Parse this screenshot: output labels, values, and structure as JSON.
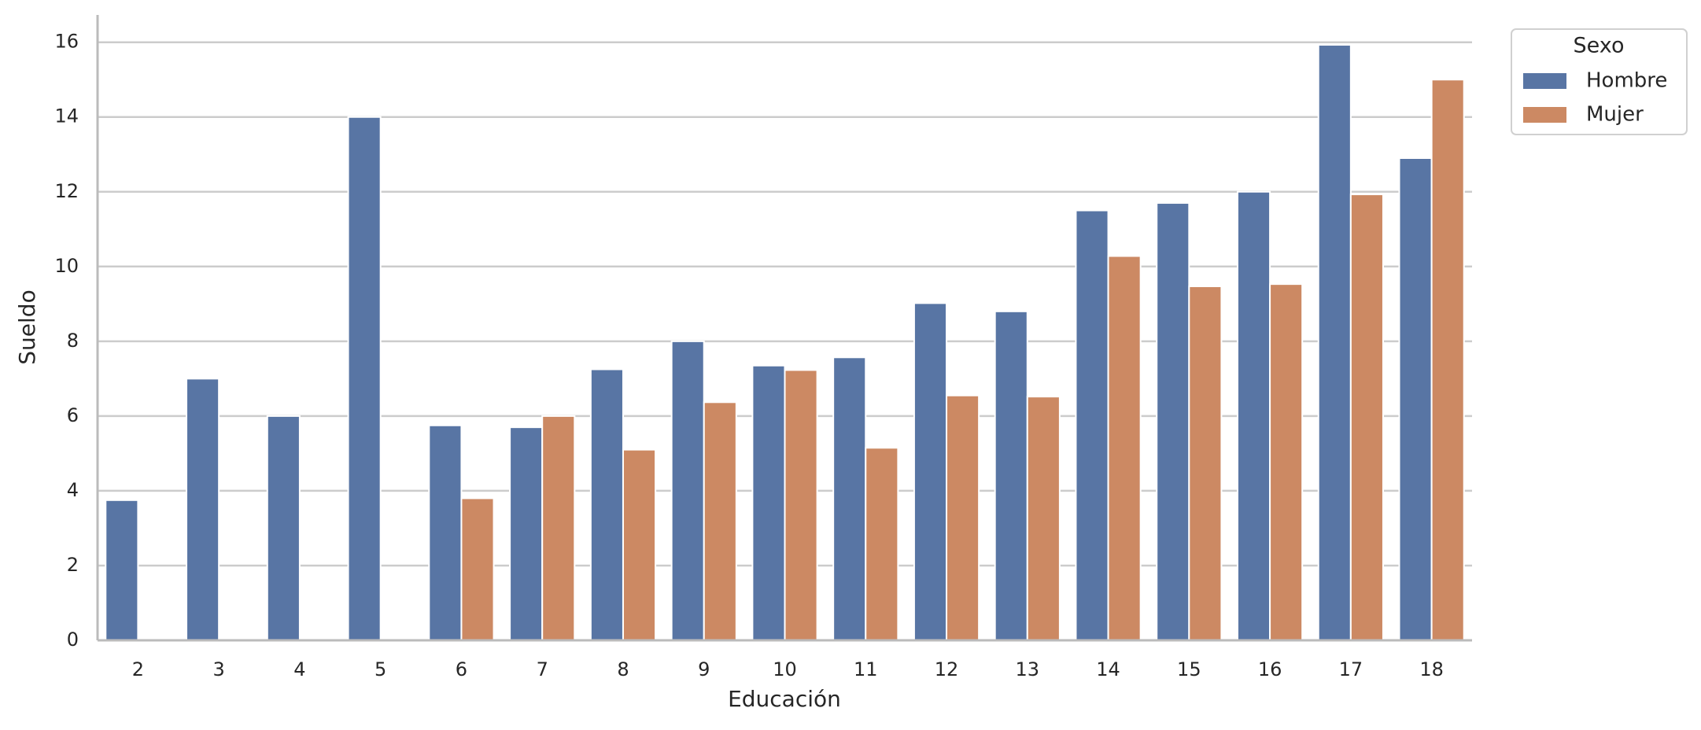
{
  "chart_data": {
    "type": "bar",
    "x_label": "Educación",
    "y_label": "Sueldo",
    "legend_title": "Sexo",
    "categories": [
      "2",
      "3",
      "4",
      "5",
      "6",
      "7",
      "8",
      "9",
      "10",
      "11",
      "12",
      "13",
      "14",
      "15",
      "16",
      "17",
      "18"
    ],
    "series": [
      {
        "name": "Hombre",
        "color": "#5875a4",
        "values": [
          3.75,
          7.0,
          6.0,
          14.0,
          5.75,
          5.7,
          7.25,
          8.0,
          7.35,
          7.57,
          9.02,
          8.8,
          11.5,
          11.7,
          12.0,
          15.93,
          12.9
        ]
      },
      {
        "name": "Mujer",
        "color": "#cc8963",
        "values": [
          null,
          null,
          null,
          null,
          3.8,
          6.0,
          5.1,
          6.37,
          7.23,
          5.15,
          6.55,
          6.52,
          10.28,
          9.47,
          9.53,
          11.93,
          15.0
        ]
      }
    ],
    "ylim": [
      0,
      16.73
    ],
    "yticks": [
      0,
      2,
      4,
      6,
      8,
      10,
      12,
      14,
      16
    ],
    "grid": true,
    "legend": "upper right outside"
  }
}
